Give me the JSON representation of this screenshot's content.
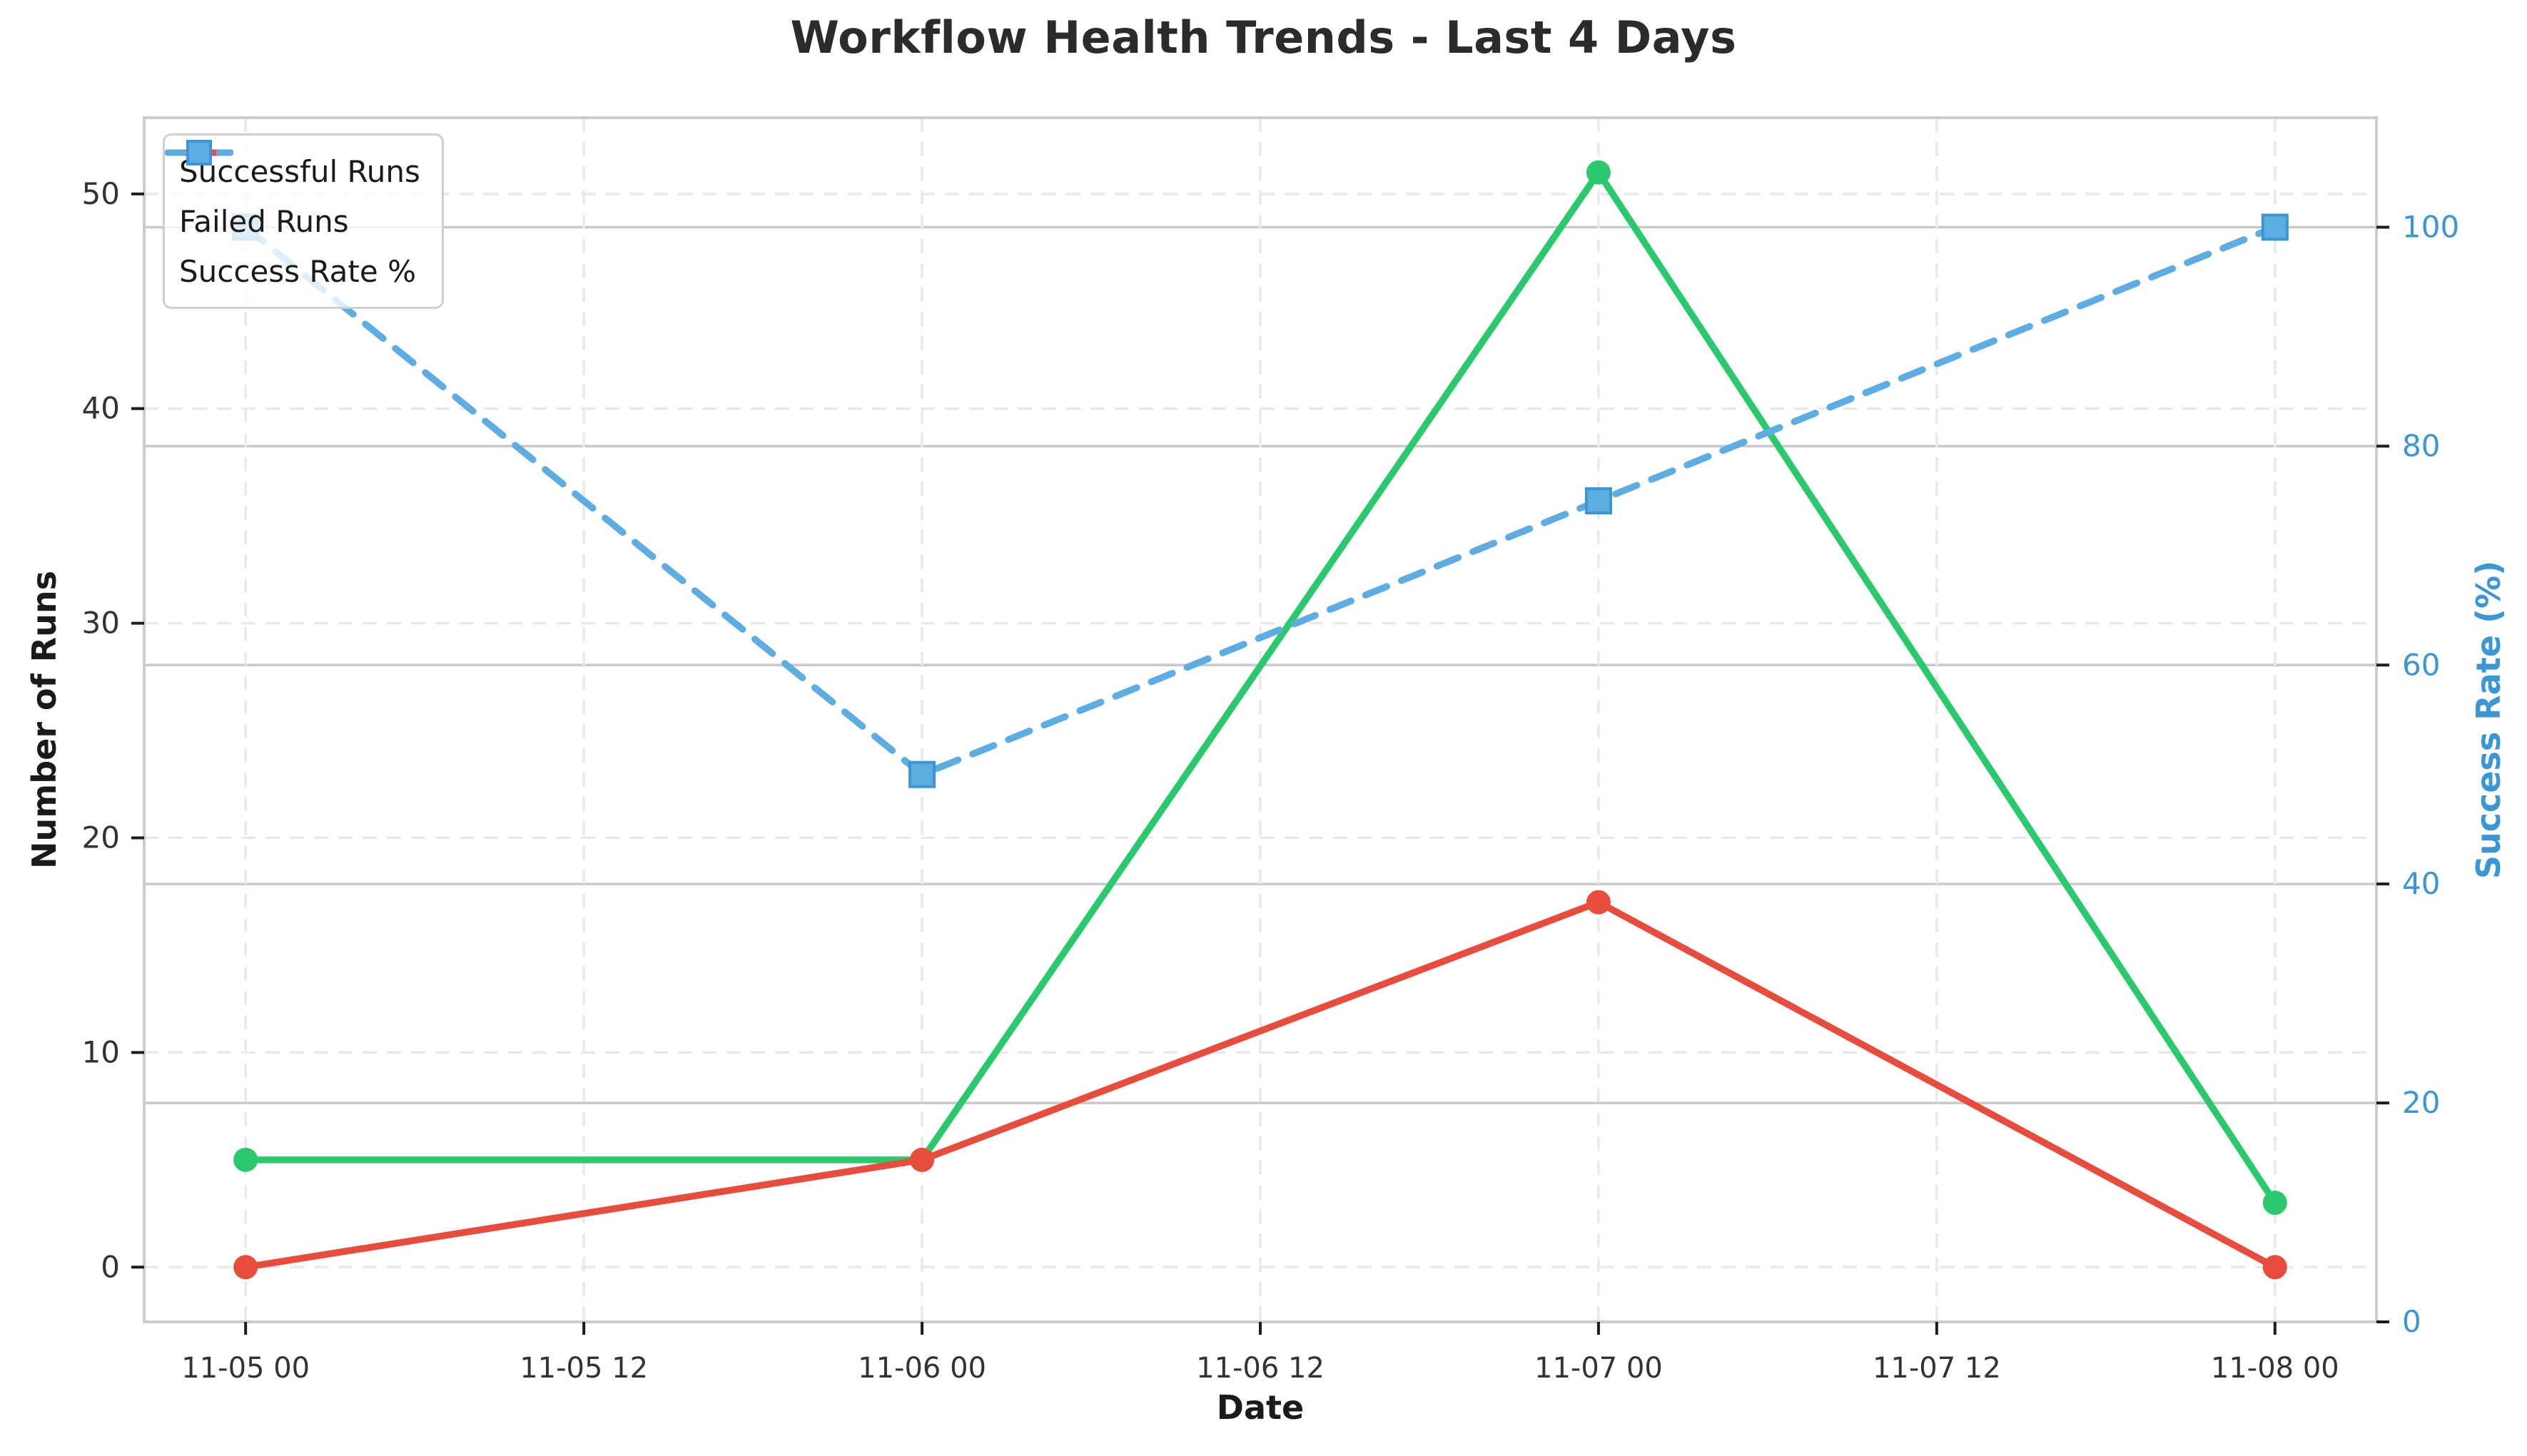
{
  "chart_data": {
    "type": "line",
    "title": "Workflow Health Trends - Last 4 Days",
    "xlabel": "Date",
    "ylabel_left": "Number of Runs",
    "ylabel_right": "Success Rate (%)",
    "x_tick_labels": [
      "11-05 00",
      "11-05 12",
      "11-06 00",
      "11-06 12",
      "11-07 00",
      "11-07 12",
      "11-08 00"
    ],
    "categories": [
      "11-05 00",
      "11-06 00",
      "11-07 00",
      "11-08 00"
    ],
    "left_axis": {
      "ticks": [
        0,
        10,
        20,
        30,
        40,
        50
      ],
      "range": [
        -2.55,
        53.55
      ]
    },
    "right_axis": {
      "ticks": [
        0,
        20,
        40,
        60,
        80,
        100
      ],
      "range": [
        0,
        110
      ]
    },
    "series": [
      {
        "name": "Successful Runs",
        "axis": "left",
        "values": [
          5,
          5,
          51,
          3
        ],
        "color": "#2bc96d",
        "line": "solid",
        "marker": "circle",
        "marker_edge": "#2bc96d"
      },
      {
        "name": "Failed Runs",
        "axis": "left",
        "values": [
          0,
          5,
          17,
          0
        ],
        "color": "#e74c3c",
        "line": "solid",
        "marker": "circle",
        "marker_edge": "#e74c3c"
      },
      {
        "name": "Success Rate %",
        "axis": "right",
        "values": [
          100,
          50,
          75,
          100
        ],
        "color": "#5dade2",
        "line": "dashed",
        "marker": "square",
        "marker_edge": "#3a96d5"
      }
    ],
    "legend_position": "upper left",
    "grid": {
      "horizontal_left_ticks": "dashed",
      "horizontal_right_ticks": "solid",
      "vertical_x_ticks": "dashed"
    }
  },
  "colors": {
    "grid_dashed": "#e9e9e9",
    "grid_solid": "#c9c9c9",
    "spine": "#cccccc",
    "tick_mark": "#1c1c1c",
    "tick_label_left": "#333333",
    "tick_label_right": "#3a96d5",
    "tick_label_bottom": "#333333",
    "title": "#2b2b2b",
    "ylabel_right": "#3a96d5"
  }
}
